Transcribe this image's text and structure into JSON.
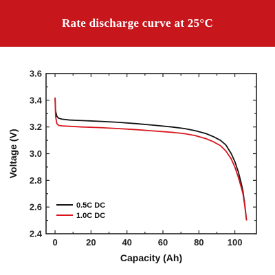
{
  "banner": {
    "title": "Rate discharge curve at 25°C",
    "color": "#c8161d"
  },
  "chart_data": {
    "type": "line",
    "title": "Rate discharge curve at 25°C",
    "xlabel": "Capacity (Ah)",
    "ylabel": "Voltage (V)",
    "xlim": [
      -5,
      112
    ],
    "ylim": [
      2.4,
      3.6
    ],
    "xticks": [
      0,
      20,
      40,
      60,
      80,
      100
    ],
    "yticks": [
      2.4,
      2.6,
      2.8,
      3.0,
      3.2,
      3.4,
      3.6
    ],
    "xtick_labels": [
      "0",
      "20",
      "40",
      "60",
      "80",
      "100"
    ],
    "ytick_labels": [
      "2.4",
      "2.6",
      "2.8",
      "3.0",
      "3.2",
      "3.4",
      "3.6"
    ],
    "grid": false,
    "legend_position": "bottom-left",
    "series": [
      {
        "name": "0.5C DC",
        "color": "#111111",
        "x": [
          0,
          0.3,
          1,
          2,
          4,
          8,
          15,
          25,
          35,
          45,
          55,
          65,
          72,
          78,
          84,
          88,
          92,
          95,
          98,
          100,
          102,
          103.5,
          104.5,
          105.5,
          106.5
        ],
        "y": [
          3.42,
          3.32,
          3.28,
          3.265,
          3.258,
          3.252,
          3.248,
          3.242,
          3.235,
          3.225,
          3.213,
          3.2,
          3.188,
          3.172,
          3.15,
          3.128,
          3.1,
          3.065,
          3.0,
          2.94,
          2.86,
          2.78,
          2.72,
          2.62,
          2.5
        ]
      },
      {
        "name": "1.0C DC",
        "color": "#d8151c",
        "x": [
          0,
          0.3,
          1,
          2,
          4,
          8,
          15,
          25,
          35,
          45,
          55,
          65,
          72,
          78,
          84,
          88,
          92,
          95,
          98,
          100,
          102,
          103.5,
          104.5,
          105.5,
          106.5
        ],
        "y": [
          3.42,
          3.28,
          3.225,
          3.212,
          3.208,
          3.205,
          3.2,
          3.195,
          3.188,
          3.18,
          3.17,
          3.16,
          3.15,
          3.135,
          3.112,
          3.09,
          3.06,
          3.02,
          2.96,
          2.9,
          2.82,
          2.75,
          2.7,
          2.61,
          2.5
        ]
      }
    ]
  }
}
